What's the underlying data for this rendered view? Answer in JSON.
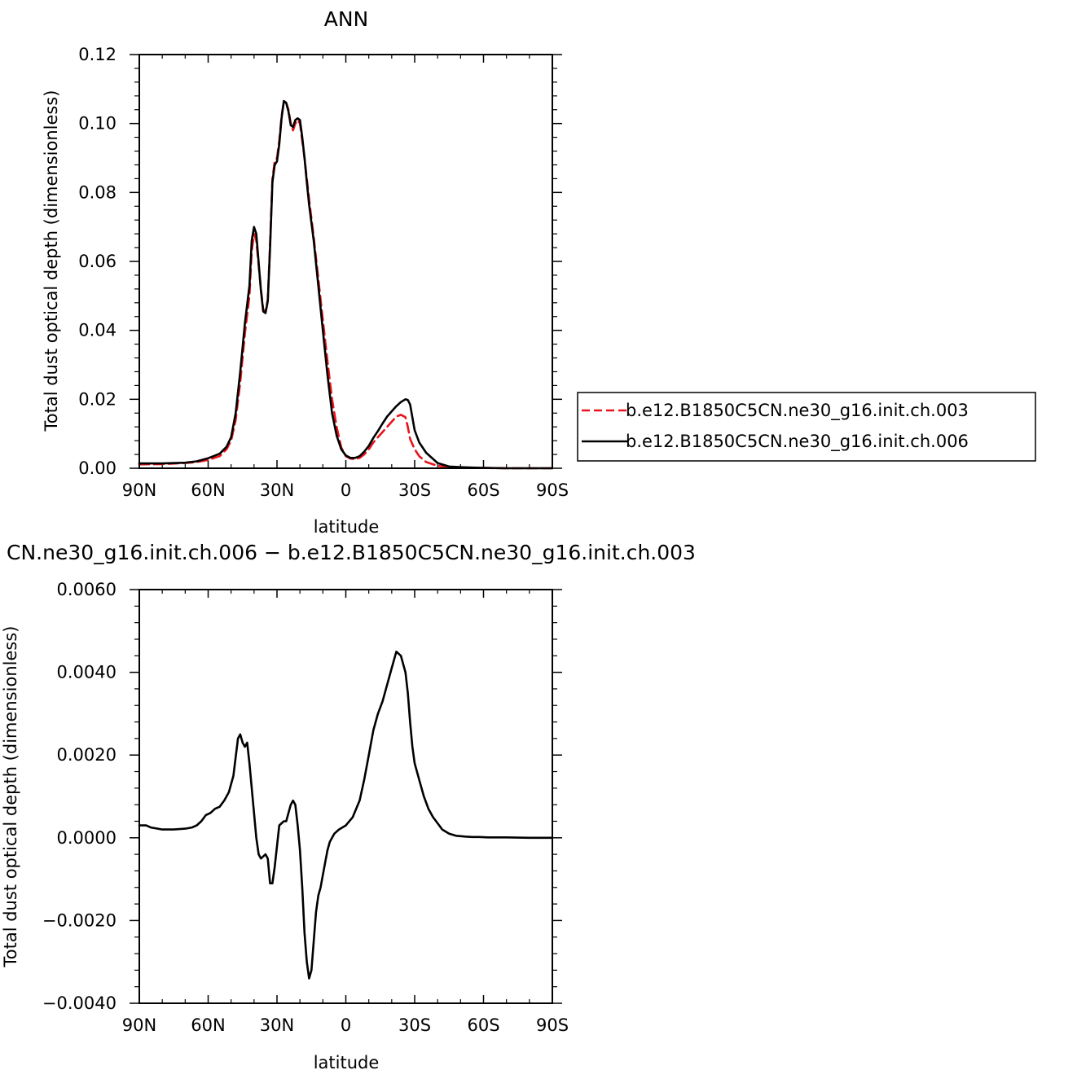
{
  "chart_data": [
    {
      "type": "line",
      "title": "ANN",
      "xlabel": "latitude",
      "ylabel": "Total dust optical depth (dimensionless)",
      "xlim": [
        -90,
        90
      ],
      "ylim": [
        0,
        0.12
      ],
      "x_ticks": [
        {
          "value": -90,
          "label": "90N"
        },
        {
          "value": -60,
          "label": "60N"
        },
        {
          "value": -30,
          "label": "30N"
        },
        {
          "value": 0,
          "label": "0"
        },
        {
          "value": 30,
          "label": "30S"
        },
        {
          "value": 60,
          "label": "60S"
        },
        {
          "value": 90,
          "label": "90S"
        }
      ],
      "y_ticks": [
        {
          "value": 0,
          "label": "0.00"
        },
        {
          "value": 0.02,
          "label": "0.02"
        },
        {
          "value": 0.04,
          "label": "0.04"
        },
        {
          "value": 0.06,
          "label": "0.06"
        },
        {
          "value": 0.08,
          "label": "0.08"
        },
        {
          "value": 0.1,
          "label": "0.10"
        },
        {
          "value": 0.12,
          "label": "0.12"
        }
      ],
      "grid": false,
      "legend_position": "right",
      "series": [
        {
          "name": "b.e12.B1850C5CN.ne30_g16.init.ch.003",
          "color": "#e8141c",
          "dash": "dashed",
          "x": [
            -90,
            -80,
            -70,
            -65,
            -60,
            -55,
            -52,
            -50,
            -48,
            -46,
            -44,
            -42,
            -41,
            -40,
            -39,
            -37,
            -36,
            -35,
            -34,
            -33,
            -32,
            -31,
            -30,
            -29,
            -28,
            -27,
            -26,
            -25,
            -24,
            -23,
            -22,
            -21,
            -20,
            -19,
            -18,
            -17,
            -16,
            -14,
            -12,
            -10,
            -8,
            -6,
            -4,
            -2,
            0,
            2,
            4,
            6,
            8,
            10,
            12,
            14,
            16,
            18,
            20,
            22,
            24,
            26,
            27,
            28,
            30,
            32,
            35,
            40,
            45,
            50,
            55,
            60,
            70,
            80,
            90
          ],
          "y": [
            0.0011,
            0.0012,
            0.0015,
            0.0018,
            0.0024,
            0.0035,
            0.0055,
            0.008,
            0.014,
            0.025,
            0.039,
            0.05,
            0.063,
            0.068,
            0.066,
            0.052,
            0.046,
            0.0455,
            0.049,
            0.065,
            0.084,
            0.089,
            0.09,
            0.095,
            0.102,
            0.1065,
            0.106,
            0.104,
            0.1,
            0.098,
            0.1,
            0.101,
            0.1,
            0.095,
            0.09,
            0.084,
            0.078,
            0.067,
            0.055,
            0.043,
            0.031,
            0.02,
            0.012,
            0.006,
            0.0035,
            0.0028,
            0.0026,
            0.003,
            0.004,
            0.0055,
            0.0075,
            0.009,
            0.0105,
            0.012,
            0.0135,
            0.015,
            0.0155,
            0.0148,
            0.012,
            0.0085,
            0.0055,
            0.0035,
            0.0018,
            0.0007,
            0.0003,
            0.0002,
            0.00012,
            0.0001,
            0.0,
            0.0,
            0.0
          ]
        },
        {
          "name": "b.e12.B1850C5CN.ne30_g16.init.ch.006",
          "color": "#000000",
          "dash": "solid",
          "x": [
            -90,
            -80,
            -70,
            -65,
            -60,
            -55,
            -52,
            -50,
            -48,
            -46,
            -44,
            -42,
            -41,
            -40,
            -39,
            -37,
            -36,
            -35,
            -34,
            -33,
            -32,
            -31,
            -30,
            -29,
            -28,
            -27,
            -26,
            -25,
            -24,
            -23,
            -22,
            -21,
            -20,
            -19,
            -18,
            -17,
            -16,
            -14,
            -12,
            -10,
            -8,
            -6,
            -4,
            -2,
            0,
            2,
            4,
            6,
            8,
            10,
            12,
            14,
            16,
            18,
            20,
            22,
            24,
            26,
            27,
            28,
            30,
            32,
            35,
            40,
            45,
            50,
            55,
            60,
            70,
            80,
            90
          ],
          "y": [
            0.0014,
            0.0014,
            0.0016,
            0.002,
            0.0029,
            0.0042,
            0.0062,
            0.009,
            0.016,
            0.028,
            0.042,
            0.053,
            0.066,
            0.07,
            0.068,
            0.0515,
            0.0455,
            0.045,
            0.0485,
            0.064,
            0.083,
            0.088,
            0.089,
            0.094,
            0.1015,
            0.1065,
            0.106,
            0.1035,
            0.0995,
            0.099,
            0.101,
            0.1015,
            0.101,
            0.096,
            0.09,
            0.083,
            0.0765,
            0.066,
            0.053,
            0.04,
            0.027,
            0.016,
            0.0095,
            0.0055,
            0.0037,
            0.003,
            0.003,
            0.0035,
            0.0048,
            0.0065,
            0.0088,
            0.0108,
            0.013,
            0.015,
            0.0165,
            0.018,
            0.0192,
            0.02,
            0.0198,
            0.0185,
            0.011,
            0.0075,
            0.0045,
            0.0015,
            0.0005,
            0.0003,
            0.0002,
            0.0001,
            0.0,
            0.0,
            0.0
          ]
        }
      ]
    },
    {
      "type": "line",
      "title": "CN.ne30_g16.init.ch.006 − b.e12.B1850C5CN.ne30_g16.init.ch.003",
      "xlabel": "latitude",
      "ylabel": "Total dust optical depth (dimensionless)",
      "xlim": [
        -90,
        90
      ],
      "ylim": [
        -0.004,
        0.006
      ],
      "x_ticks": [
        {
          "value": -90,
          "label": "90N"
        },
        {
          "value": -60,
          "label": "60N"
        },
        {
          "value": -30,
          "label": "30N"
        },
        {
          "value": 0,
          "label": "0"
        },
        {
          "value": 30,
          "label": "30S"
        },
        {
          "value": 60,
          "label": "60S"
        },
        {
          "value": 90,
          "label": "90S"
        }
      ],
      "y_ticks": [
        {
          "value": -0.004,
          "label": "−0.0040"
        },
        {
          "value": -0.002,
          "label": "−0.0020"
        },
        {
          "value": 0,
          "label": "0.0000"
        },
        {
          "value": 0.002,
          "label": "0.0020"
        },
        {
          "value": 0.004,
          "label": "0.0040"
        },
        {
          "value": 0.006,
          "label": "0.0060"
        }
      ],
      "grid": false,
      "series": [
        {
          "color": "#000000",
          "dash": "solid",
          "x": [
            -90,
            -87,
            -85,
            -80,
            -75,
            -70,
            -67,
            -65,
            -63,
            -61,
            -59,
            -57,
            -55,
            -53,
            -51,
            -49,
            -47,
            -46,
            -45,
            -44,
            -43,
            -42,
            -41,
            -40,
            -39,
            -38,
            -37,
            -36,
            -35,
            -34,
            -33,
            -32,
            -31,
            -30,
            -29,
            -28,
            -27,
            -26,
            -25,
            -24,
            -23,
            -22,
            -21,
            -20,
            -19,
            -18,
            -17,
            -16,
            -15,
            -14,
            -13,
            -12,
            -11,
            -10,
            -9,
            -8,
            -7,
            -6,
            -5,
            -3,
            0,
            3,
            6,
            8,
            10,
            12,
            14,
            16,
            18,
            20,
            22,
            24,
            26,
            27,
            28,
            29,
            30,
            32,
            34,
            36,
            38,
            40,
            42,
            45,
            48,
            52,
            55,
            58,
            62,
            70,
            80,
            90
          ],
          "y": [
            0.0003,
            0.0003,
            0.00025,
            0.0002,
            0.0002,
            0.00022,
            0.00025,
            0.0003,
            0.0004,
            0.00055,
            0.0006,
            0.0007,
            0.00075,
            0.0009,
            0.0011,
            0.0015,
            0.0024,
            0.0025,
            0.0023,
            0.0022,
            0.0023,
            0.0018,
            0.0012,
            0.0006,
            0.0,
            -0.0004,
            -0.0005,
            -0.00045,
            -0.0004,
            -0.0005,
            -0.0011,
            -0.0011,
            -0.0007,
            -0.0002,
            0.0003,
            0.00035,
            0.0004,
            0.0004,
            0.0006,
            0.0008,
            0.0009,
            0.0008,
            0.0003,
            -0.0003,
            -0.0012,
            -0.0023,
            -0.003,
            -0.0034,
            -0.0032,
            -0.0025,
            -0.0018,
            -0.0014,
            -0.0012,
            -0.0009,
            -0.0006,
            -0.0003,
            -0.0001,
            0.0,
            0.0001,
            0.0002,
            0.0003,
            0.0005,
            0.0009,
            0.0014,
            0.002,
            0.0026,
            0.003,
            0.0033,
            0.0037,
            0.0041,
            0.0045,
            0.0044,
            0.004,
            0.0035,
            0.0028,
            0.0022,
            0.0018,
            0.0014,
            0.001,
            0.0007,
            0.0005,
            0.00035,
            0.0002,
            0.0001,
            5e-05,
            3e-05,
            2e-05,
            2e-05,
            1e-05,
            1e-05,
            0.0,
            0.0
          ]
        }
      ]
    }
  ]
}
